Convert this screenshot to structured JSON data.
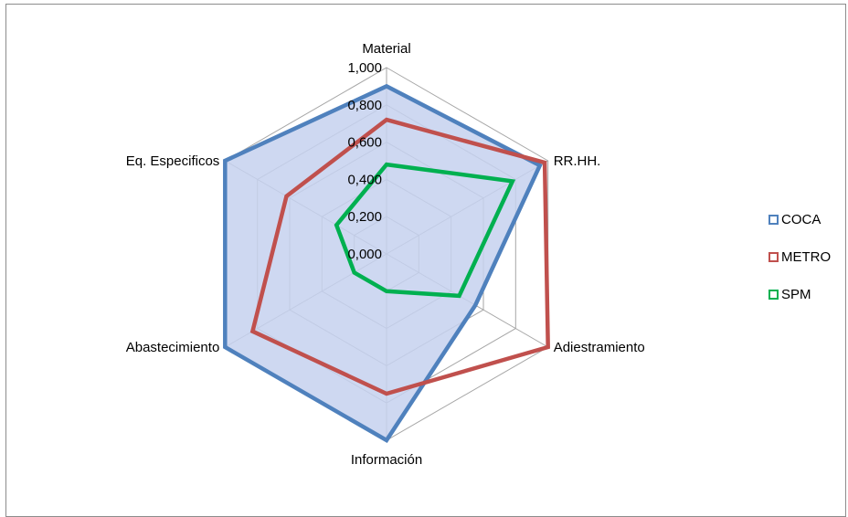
{
  "chart_data": {
    "type": "radar",
    "categories": [
      "Material",
      "RR.HH.",
      "Adiestramiento",
      "Información",
      "Abastecimiento",
      "Eq. Especificos"
    ],
    "series": [
      {
        "name": "COCA",
        "color": "#4f81bd",
        "values": [
          0.9,
          0.95,
          0.55,
          1.0,
          1.0,
          1.0
        ]
      },
      {
        "name": "METRO",
        "color": "#c0504d",
        "values": [
          0.72,
          0.98,
          1.0,
          0.75,
          0.83,
          0.62
        ]
      },
      {
        "name": "SPM",
        "color": "#00b050",
        "values": [
          0.48,
          0.78,
          0.45,
          0.2,
          0.2,
          0.31
        ]
      }
    ],
    "rlim": [
      0,
      1
    ],
    "tick_labels": [
      "0,000",
      "0,200",
      "0,400",
      "0,600",
      "0,800",
      "1,000"
    ],
    "fill_color": "#c5d1ee",
    "grid": true,
    "legend_position": "right"
  }
}
